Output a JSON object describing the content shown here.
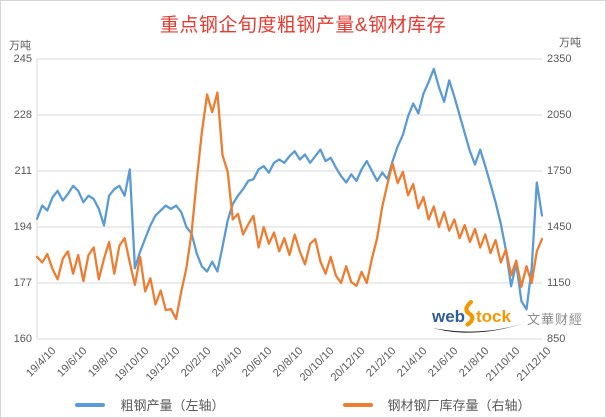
{
  "title": {
    "text": "重点钢企旬度粗钢产量&钢材库存",
    "color": "#e8392f"
  },
  "axes": {
    "left_unit": "万吨",
    "right_unit": "万吨",
    "left_ticks": [
      245,
      228,
      211,
      194,
      177,
      160
    ],
    "right_ticks": [
      2350,
      2050,
      1750,
      1450,
      1150,
      850
    ]
  },
  "colors": {
    "production_blue": "#5b9bd5",
    "inventory_orange": "#ed7d31",
    "gridline": "#d9d9d9",
    "tick_text": "#595959"
  },
  "chart_data": {
    "type": "line",
    "title": "重点钢企旬度粗钢产量&钢材库存",
    "x_axis_note": "ten-day (旬) periods, labels every 2 months",
    "x_tick_labels": [
      "19/4/10",
      "19/6/10",
      "19/8/10",
      "19/10/10",
      "19/12/10",
      "20/2/10",
      "20/4/10",
      "20/6/10",
      "20/8/10",
      "20/10/10",
      "20/12/10",
      "21/2/10",
      "21/4/10",
      "21/6/10",
      "21/8/10",
      "21/10/10",
      "21/12/10"
    ],
    "x_tick_every": 6,
    "ylim_left": [
      160,
      245
    ],
    "ylim_right": [
      850,
      2350
    ],
    "grid": true,
    "legend_position": "bottom",
    "series": [
      {
        "name": "粗钢产量（左轴）",
        "axis": "left",
        "color": "#5b9bd5",
        "unit": "万吨",
        "values": [
          196.5,
          200.5,
          199.0,
          203.0,
          205.0,
          202.0,
          204.0,
          206.5,
          205.0,
          201.5,
          203.5,
          202.5,
          199.5,
          194.5,
          203.5,
          205.5,
          206.5,
          203.5,
          211.5,
          181.5,
          186.5,
          190.5,
          194.5,
          197.5,
          199.0,
          200.5,
          199.5,
          200.5,
          198.5,
          194.0,
          192.0,
          186.0,
          182.0,
          180.5,
          183.5,
          180.5,
          188.0,
          196.0,
          201.0,
          203.5,
          205.5,
          208.0,
          208.5,
          211.5,
          212.5,
          210.5,
          213.5,
          214.5,
          213.5,
          215.5,
          217.0,
          214.5,
          216.0,
          213.5,
          215.5,
          217.5,
          214.0,
          215.0,
          212.0,
          209.5,
          207.5,
          210.0,
          208.0,
          211.5,
          214.0,
          211.0,
          208.0,
          210.5,
          208.5,
          214.0,
          218.5,
          222.0,
          227.5,
          231.5,
          228.5,
          234.5,
          238.0,
          242.0,
          236.5,
          232.0,
          238.5,
          233.5,
          228.0,
          222.5,
          217.0,
          213.0,
          217.5,
          212.5,
          207.0,
          201.5,
          195.0,
          187.0,
          176.0,
          183.0,
          171.5,
          169.0,
          181.5,
          207.5,
          197.5
        ]
      },
      {
        "name": "钢材钢厂库存量（右轴）",
        "axis": "right",
        "color": "#ed7d31",
        "unit": "万吨",
        "values": [
          1290,
          1260,
          1305,
          1225,
          1170,
          1280,
          1320,
          1200,
          1300,
          1160,
          1300,
          1340,
          1170,
          1280,
          1370,
          1200,
          1350,
          1390,
          1260,
          1140,
          1290,
          1105,
          1175,
          1035,
          1110,
          1005,
          1010,
          957,
          1105,
          1230,
          1420,
          1700,
          1960,
          2160,
          2065,
          2170,
          1835,
          1745,
          1490,
          1520,
          1410,
          1465,
          1510,
          1340,
          1450,
          1360,
          1420,
          1320,
          1390,
          1300,
          1410,
          1320,
          1250,
          1360,
          1385,
          1265,
          1200,
          1290,
          1190,
          1150,
          1240,
          1155,
          1135,
          1210,
          1150,
          1280,
          1390,
          1560,
          1680,
          1790,
          1685,
          1745,
          1620,
          1680,
          1550,
          1610,
          1490,
          1560,
          1450,
          1530,
          1430,
          1490,
          1390,
          1460,
          1370,
          1440,
          1340,
          1410,
          1310,
          1380,
          1260,
          1330,
          1190,
          1270,
          1130,
          1240,
          1150,
          1320,
          1385
        ]
      }
    ]
  },
  "legend": {
    "items": [
      {
        "label": "粗钢产量（左轴）",
        "color": "#5b9bd5"
      },
      {
        "label": "钢材钢厂库存量（右轴）",
        "color": "#ed7d31"
      }
    ]
  },
  "watermark": {
    "web": "web",
    "tock": "tock",
    "cn": "文華财經"
  }
}
